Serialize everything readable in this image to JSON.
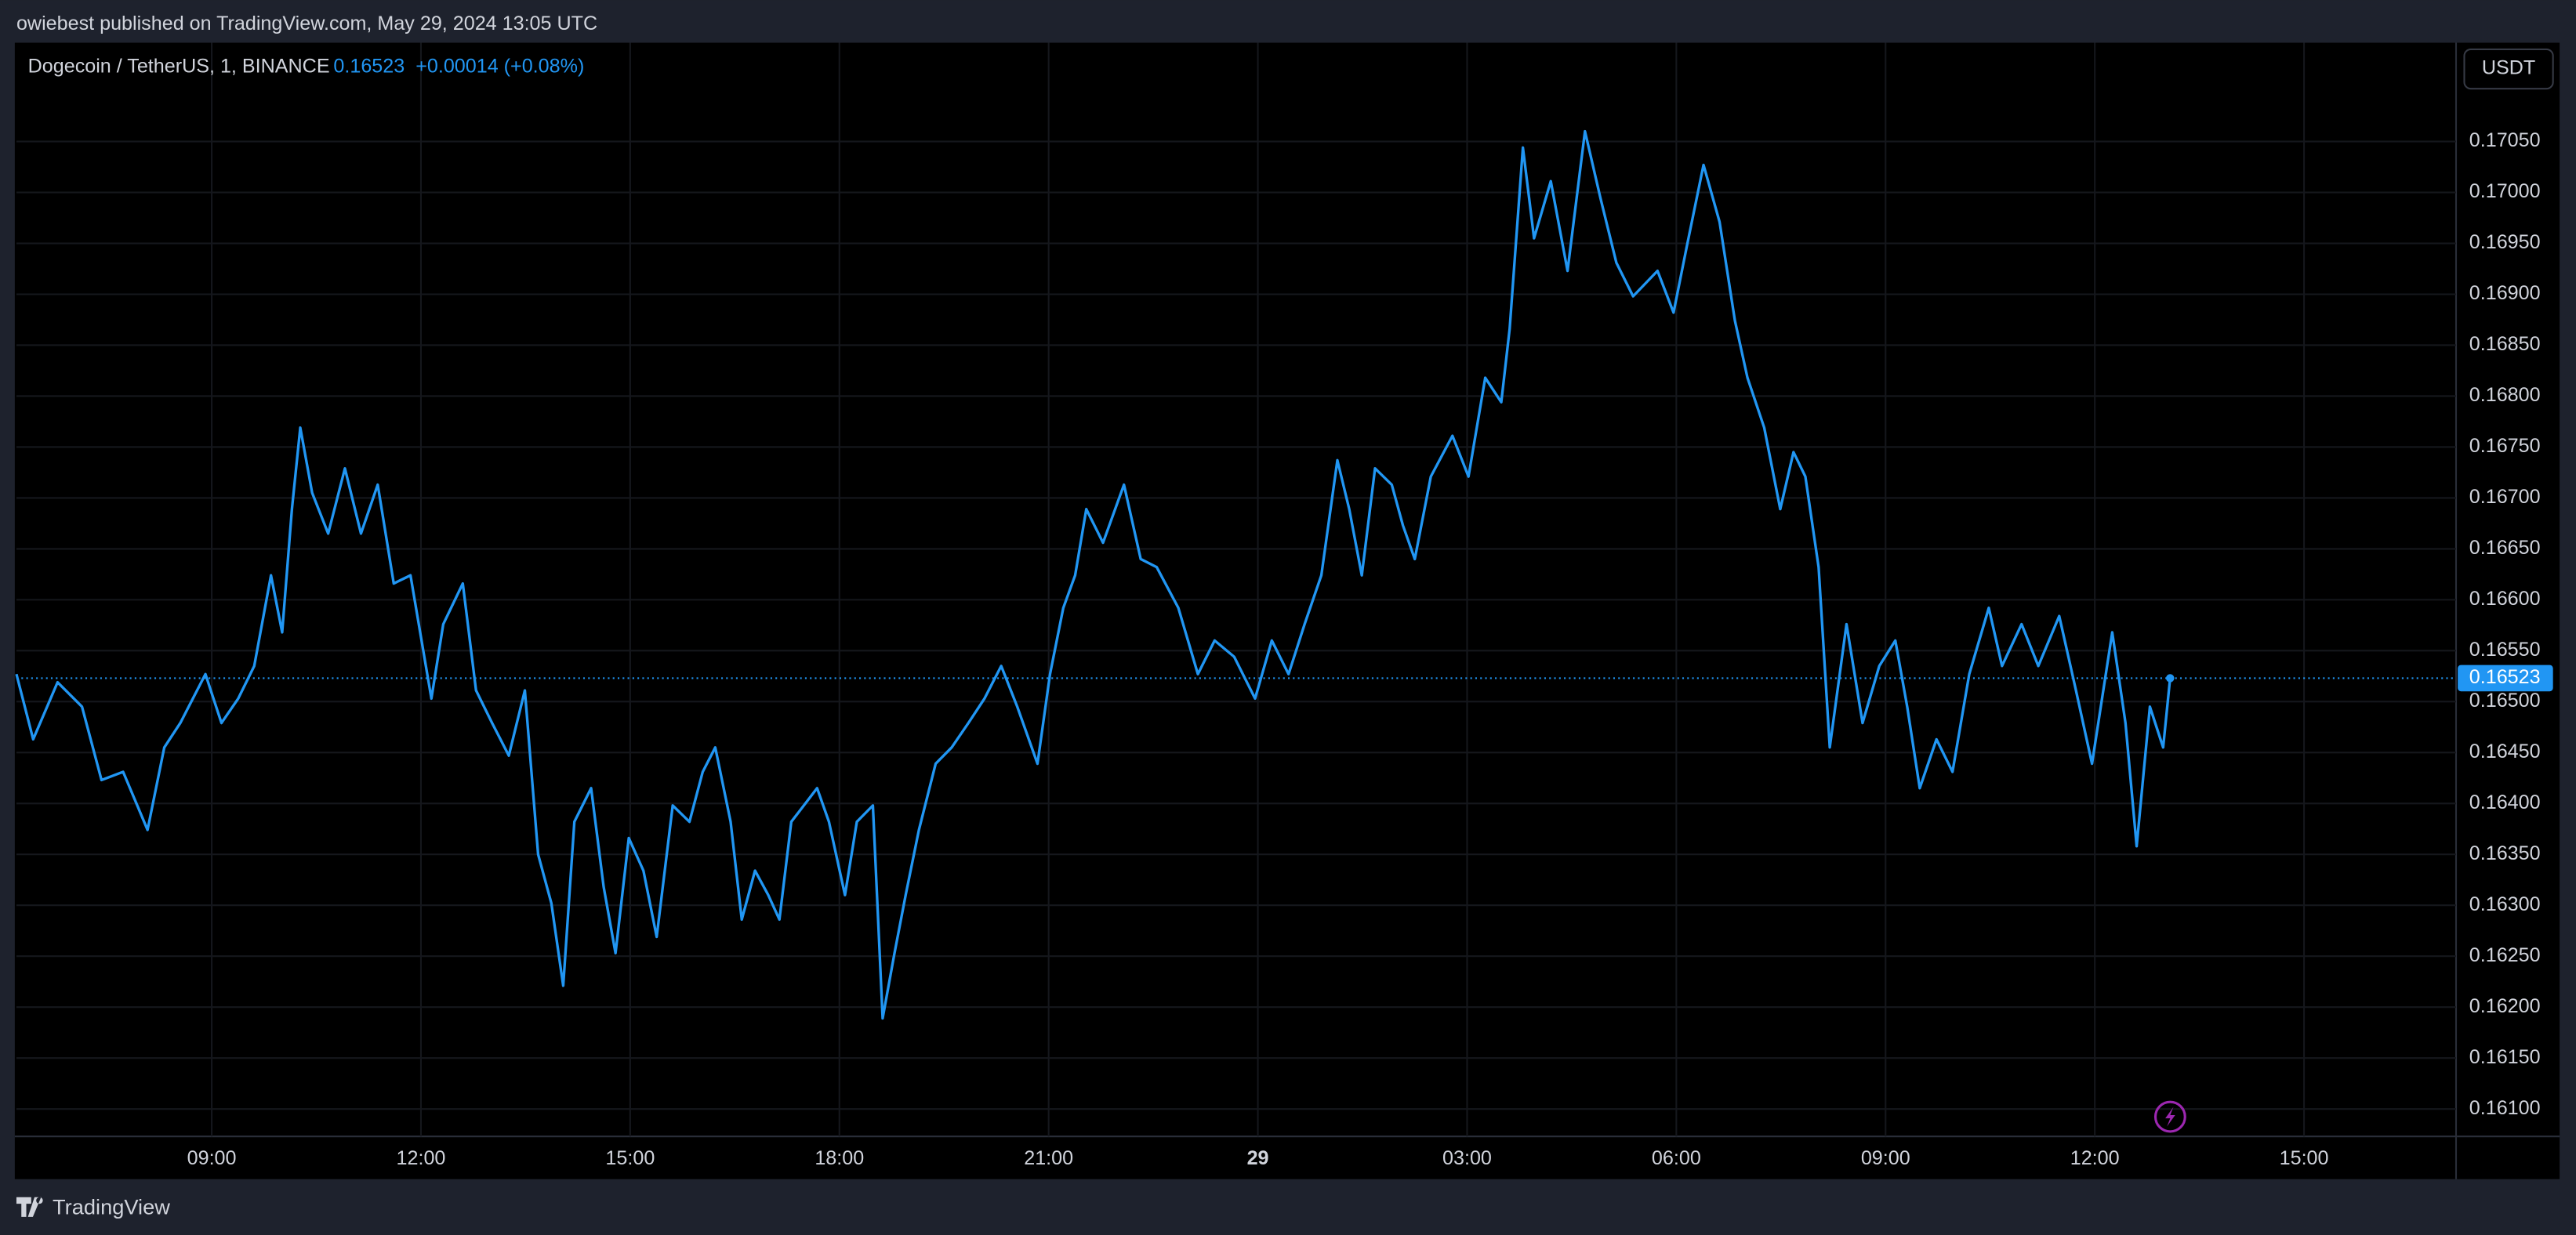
{
  "header": {
    "text": "owiebest published on TradingView.com, May 29, 2024 13:05 UTC"
  },
  "footer": {
    "brand": "TradingView"
  },
  "chart_data": {
    "type": "line",
    "title": "Dogecoin / TetherUS, 1, BINANCE",
    "change_text": "+0.00014 (+0.08%)",
    "currency": "USDT",
    "last_price": {
      "value": 0.16523,
      "label": "0.16523"
    },
    "grid": true,
    "x": [
      6.2,
      6.44,
      6.79,
      7.14,
      7.42,
      7.73,
      8.08,
      8.32,
      8.55,
      8.91,
      9.14,
      9.38,
      9.61,
      9.85,
      10.01,
      10.15,
      10.27,
      10.44,
      10.67,
      10.91,
      11.14,
      11.38,
      11.61,
      11.85,
      12.15,
      12.32,
      12.6,
      12.79,
      13.02,
      13.26,
      13.49,
      13.68,
      13.87,
      14.04,
      14.2,
      14.44,
      14.62,
      14.79,
      14.98,
      15.19,
      15.38,
      15.61,
      15.85,
      16.04,
      16.22,
      16.44,
      16.6,
      16.79,
      16.98,
      17.14,
      17.31,
      17.49,
      17.68,
      17.85,
      18.08,
      18.25,
      18.48,
      18.62,
      18.79,
      18.95,
      19.14,
      19.38,
      19.61,
      19.85,
      20.08,
      20.32,
      20.55,
      20.84,
      21.02,
      21.21,
      21.38,
      21.54,
      21.78,
      22.08,
      22.32,
      22.55,
      22.86,
      23.14,
      23.38,
      23.66,
      23.96,
      24.2,
      24.44,
      24.67,
      24.91,
      25.14,
      25.31,
      25.49,
      25.68,
      25.92,
      26.08,
      26.25,
      26.48,
      26.79,
      27.02,
      27.26,
      27.49,
      27.61,
      27.8,
      27.96,
      28.2,
      28.44,
      28.69,
      28.91,
      29.14,
      29.38,
      29.73,
      29.96,
      30.15,
      30.39,
      30.62,
      30.84,
      31.02,
      31.26,
      31.49,
      31.68,
      31.85,
      32.04,
      32.2,
      32.44,
      32.67,
      32.91,
      33.14,
      33.31,
      33.49,
      33.73,
      33.96,
      34.2,
      34.48,
      34.67,
      34.95,
      35.19,
      35.49,
      35.73,
      35.96,
      36.25,
      36.44,
      36.6,
      36.79,
      36.98,
      37.08
    ],
    "series": [
      {
        "name": "DOGEUSDT",
        "color": "#2196f3",
        "values": [
          0.16527,
          0.16463,
          0.16519,
          0.16495,
          0.16423,
          0.16431,
          0.16374,
          0.16455,
          0.16479,
          0.16527,
          0.16479,
          0.16503,
          0.16535,
          0.16624,
          0.16568,
          0.16689,
          0.16769,
          0.16705,
          0.16665,
          0.16729,
          0.16665,
          0.16713,
          0.16616,
          0.16624,
          0.16503,
          0.16576,
          0.16616,
          0.16511,
          0.16479,
          0.16447,
          0.16511,
          0.1635,
          0.16302,
          0.16221,
          0.16382,
          0.16415,
          0.16318,
          0.16253,
          0.16366,
          0.16334,
          0.16269,
          0.16398,
          0.16382,
          0.16431,
          0.16455,
          0.16382,
          0.16286,
          0.16334,
          0.1631,
          0.16286,
          0.16382,
          0.16398,
          0.16415,
          0.16382,
          0.1631,
          0.16382,
          0.16398,
          0.16189,
          0.16253,
          0.1631,
          0.16374,
          0.16439,
          0.16455,
          0.16479,
          0.16503,
          0.16535,
          0.16495,
          0.16439,
          0.16527,
          0.16592,
          0.16624,
          0.16689,
          0.16656,
          0.16713,
          0.1664,
          0.16632,
          0.16592,
          0.16527,
          0.1656,
          0.16544,
          0.16503,
          0.1656,
          0.16527,
          0.16576,
          0.16624,
          0.16737,
          0.16689,
          0.16624,
          0.16729,
          0.16713,
          0.16673,
          0.1664,
          0.16721,
          0.16761,
          0.16721,
          0.16818,
          0.16794,
          0.16866,
          0.17044,
          0.16955,
          0.17011,
          0.16923,
          0.1706,
          0.16995,
          0.16931,
          0.16898,
          0.16923,
          0.16882,
          0.16947,
          0.17027,
          0.16971,
          0.16874,
          0.16818,
          0.16769,
          0.16689,
          0.16745,
          0.16721,
          0.16632,
          0.16455,
          0.16576,
          0.16479,
          0.16535,
          0.1656,
          0.16495,
          0.16415,
          0.16463,
          0.16431,
          0.16527,
          0.16592,
          0.16535,
          0.16576,
          0.16535,
          0.16584,
          0.16511,
          0.16439,
          0.16568,
          0.16479,
          0.16358,
          0.16495,
          0.16455,
          0.16523
        ]
      }
    ],
    "xlim": [
      6.2,
      41.18
    ],
    "xticks": [
      {
        "value": 9,
        "label": "09:00"
      },
      {
        "value": 12,
        "label": "12:00"
      },
      {
        "value": 15,
        "label": "15:00"
      },
      {
        "value": 18,
        "label": "18:00"
      },
      {
        "value": 21,
        "label": "21:00"
      },
      {
        "value": 24,
        "label": "29"
      },
      {
        "value": 27,
        "label": "03:00"
      },
      {
        "value": 30,
        "label": "06:00"
      },
      {
        "value": 33,
        "label": "09:00"
      },
      {
        "value": 36,
        "label": "12:00"
      },
      {
        "value": 39,
        "label": "15:00"
      }
    ],
    "ylim": [
      0.16073,
      0.17147
    ],
    "yticks": [
      {
        "value": 0.161,
        "label": "0.16100"
      },
      {
        "value": 0.1615,
        "label": "0.16150"
      },
      {
        "value": 0.162,
        "label": "0.16200"
      },
      {
        "value": 0.1625,
        "label": "0.16250"
      },
      {
        "value": 0.163,
        "label": "0.16300"
      },
      {
        "value": 0.1635,
        "label": "0.16350"
      },
      {
        "value": 0.164,
        "label": "0.16400"
      },
      {
        "value": 0.1645,
        "label": "0.16450"
      },
      {
        "value": 0.165,
        "label": "0.16500"
      },
      {
        "value": 0.1655,
        "label": "0.16550"
      },
      {
        "value": 0.166,
        "label": "0.16600"
      },
      {
        "value": 0.1665,
        "label": "0.16650"
      },
      {
        "value": 0.167,
        "label": "0.16700"
      },
      {
        "value": 0.1675,
        "label": "0.16750"
      },
      {
        "value": 0.168,
        "label": "0.16800"
      },
      {
        "value": 0.1685,
        "label": "0.16850"
      },
      {
        "value": 0.169,
        "label": "0.16900"
      },
      {
        "value": 0.1695,
        "label": "0.16950"
      },
      {
        "value": 0.17,
        "label": "0.17000"
      },
      {
        "value": 0.1705,
        "label": "0.17050"
      }
    ]
  }
}
